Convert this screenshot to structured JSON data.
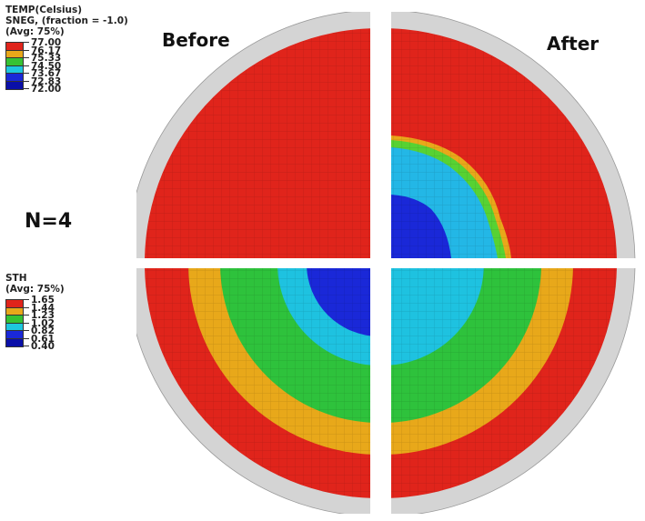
{
  "labels": {
    "before": "Before",
    "after": "After",
    "n": "N=4"
  },
  "legend_temp": {
    "title_lines": [
      "TEMP(Celsius)",
      "SNEG, (fraction = -1.0)",
      "(Avg: 75%)"
    ],
    "values": [
      "77.00",
      "76.17",
      "75.33",
      "74.50",
      "73.67",
      "72.83",
      "72.00"
    ],
    "colors": [
      "#e0241b",
      "#e8a81a",
      "#36c233",
      "#1ec7de",
      "#1a28d8",
      "#0a0fa8"
    ]
  },
  "legend_sth": {
    "title_lines": [
      "STH",
      "(Avg: 75%)"
    ],
    "values": [
      "1.65",
      "1.44",
      "1.23",
      "1.02",
      "0.82",
      "0.61",
      "0.40"
    ],
    "colors": [
      "#e0241b",
      "#e8a81a",
      "#36c233",
      "#1ec7de",
      "#1a28d8",
      "#0a0fa8"
    ]
  },
  "fill_colors": {
    "red": "#e0241b",
    "orange": "#e8a81a",
    "lightgreen": "#57d233",
    "green": "#2ec23c",
    "cyan": "#1ec2e0",
    "lightblue": "#23b7e6",
    "blue": "#1a28d8",
    "rim": "#d4d4d4"
  }
}
